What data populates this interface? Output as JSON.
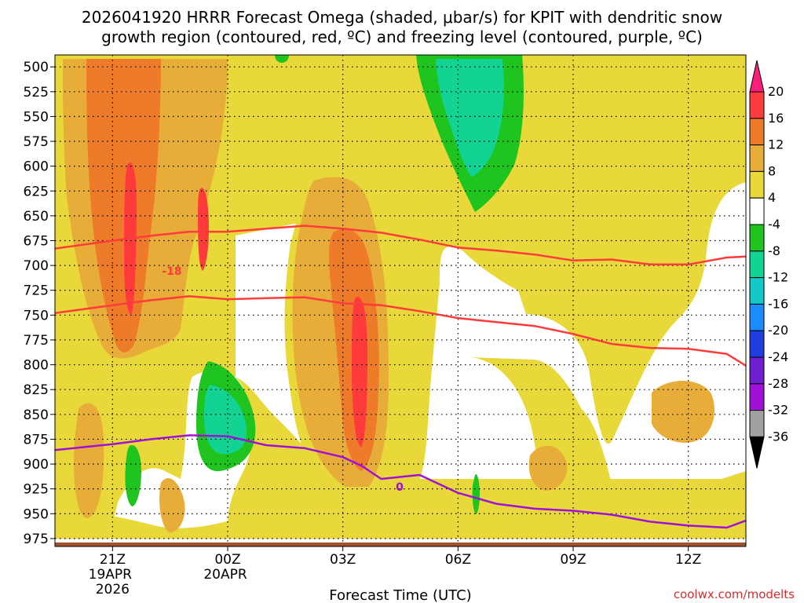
{
  "chart_data": {
    "type": "heatmap",
    "title_line1": "2026041920 HRRR Forecast Omega (shaded, μbar/s) for KPIT with dendritic snow",
    "title_line2": "growth region (contoured, red, ºC) and freezing level (contoured, purple, ºC)",
    "xlabel": "Forecast Time (UTC)",
    "credit": "coolwx.com/modelts",
    "x_range_hours": [
      -1.5,
      16.5
    ],
    "x_ticks": [
      {
        "hour": 0,
        "label": "21Z",
        "sub1": "19APR",
        "sub2": "2026"
      },
      {
        "hour": 3,
        "label": "00Z",
        "sub1": "20APR",
        "sub2": ""
      },
      {
        "hour": 6,
        "label": "03Z",
        "sub1": "",
        "sub2": ""
      },
      {
        "hour": 9,
        "label": "06Z",
        "sub1": "",
        "sub2": ""
      },
      {
        "hour": 12,
        "label": "09Z",
        "sub1": "",
        "sub2": ""
      },
      {
        "hour": 15,
        "label": "12Z",
        "sub1": "",
        "sub2": ""
      }
    ],
    "y_ticks": [
      "500",
      "525",
      "550",
      "575",
      "600",
      "625",
      "650",
      "675",
      "700",
      "725",
      "750",
      "775",
      "800",
      "825",
      "850",
      "875",
      "900",
      "925",
      "950",
      "975"
    ],
    "y_range_hpa": [
      488,
      983
    ],
    "colorbar": {
      "labels": [
        "20",
        "16",
        "12",
        "8",
        "4",
        "-4",
        "-8",
        "-12",
        "-16",
        "-20",
        "-24",
        "-28",
        "-32",
        "-36"
      ],
      "colors": [
        "#ff1f7a",
        "#ff3b3b",
        "#ee7b2a",
        "#e8ac38",
        "#e8d83a",
        "#ffffff",
        "#1fc41f",
        "#13d394",
        "#14c8c8",
        "#1a8cff",
        "#1f3ee0",
        "#6b1fd0",
        "#a010d8",
        "#a0a0a0",
        "#000000"
      ]
    },
    "contour_labels": {
      "dendritic": "-18",
      "freezing": "0"
    },
    "dendritic_top_hpa": [
      [
        -1.5,
        683
      ],
      [
        0,
        675
      ],
      [
        1,
        670
      ],
      [
        2,
        666
      ],
      [
        3,
        666
      ],
      [
        4,
        663
      ],
      [
        5,
        660
      ],
      [
        6,
        663
      ],
      [
        7,
        667
      ],
      [
        8,
        674
      ],
      [
        9,
        682
      ],
      [
        10,
        685
      ],
      [
        11,
        689
      ],
      [
        12,
        695
      ],
      [
        13,
        694
      ],
      [
        14,
        699
      ],
      [
        15,
        699
      ],
      [
        16,
        692
      ],
      [
        16.5,
        691
      ]
    ],
    "dendritic_bottom_hpa": [
      [
        -1.5,
        748
      ],
      [
        0,
        740
      ],
      [
        1,
        735
      ],
      [
        2,
        731
      ],
      [
        3,
        734
      ],
      [
        4,
        733
      ],
      [
        5,
        732
      ],
      [
        6,
        738
      ],
      [
        7,
        740
      ],
      [
        8,
        746
      ],
      [
        9,
        753
      ],
      [
        10,
        757
      ],
      [
        11,
        761
      ],
      [
        12,
        769
      ],
      [
        13,
        779
      ],
      [
        14,
        783
      ],
      [
        15,
        784
      ],
      [
        16,
        789
      ],
      [
        16.5,
        801
      ]
    ],
    "freezing_level_hpa": [
      [
        -1.5,
        886
      ],
      [
        0,
        880
      ],
      [
        1,
        875
      ],
      [
        2,
        871
      ],
      [
        3,
        872
      ],
      [
        4,
        881
      ],
      [
        5,
        884
      ],
      [
        6,
        893
      ],
      [
        6.5,
        902
      ],
      [
        7,
        915
      ],
      [
        8,
        911
      ],
      [
        9,
        929
      ],
      [
        10,
        940
      ],
      [
        11,
        945
      ],
      [
        12,
        947
      ],
      [
        13,
        951
      ],
      [
        14,
        958
      ],
      [
        15,
        962
      ],
      [
        16,
        964
      ],
      [
        16.5,
        957
      ]
    ],
    "ground_hpa": 979
  }
}
